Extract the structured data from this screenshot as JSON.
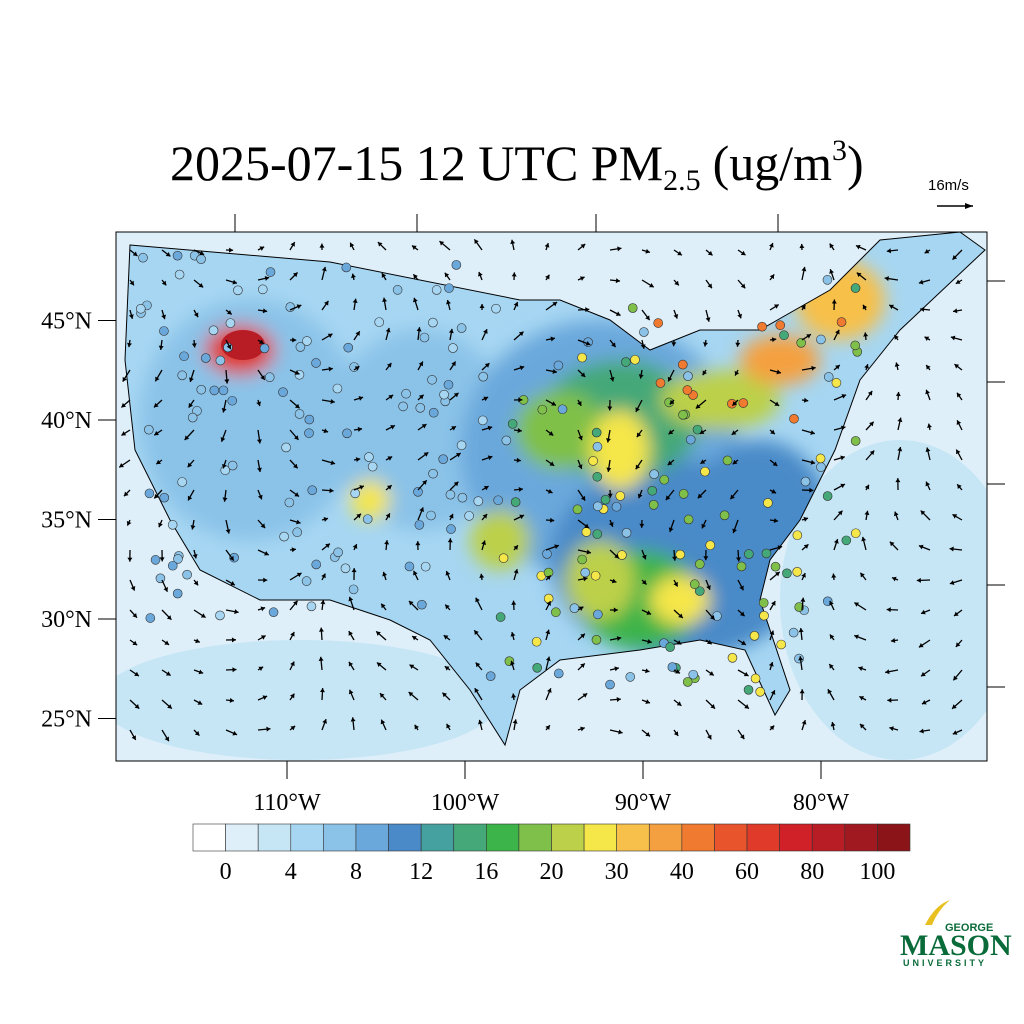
{
  "header": {
    "title": {
      "main": "2025-07-15 12 UTC PM",
      "sub": "2.5",
      "unit": "(ug/m",
      "sup": "3",
      "close": ")"
    },
    "reference_vector": "16m/s"
  },
  "map": {
    "lat_ticks": [
      {
        "value": 45,
        "label": "45°N"
      },
      {
        "value": 40,
        "label": "40°N"
      },
      {
        "value": 35,
        "label": "35°N"
      },
      {
        "value": 30,
        "label": "30°N"
      },
      {
        "value": 25,
        "label": "25°N"
      }
    ],
    "lon_ticks": [
      {
        "value": -110,
        "label": "110°W"
      },
      {
        "value": -100,
        "label": "100°W"
      },
      {
        "value": -90,
        "label": "90°W"
      },
      {
        "value": -80,
        "label": "80°W"
      }
    ]
  },
  "colorbar": {
    "colors": [
      "#ffffff",
      "#deeff9",
      "#c6e6f6",
      "#a6d6f2",
      "#8ac2e8",
      "#6aa8dc",
      "#4a8ac8",
      "#45a0a0",
      "#45a878",
      "#3cb44a",
      "#7fc04a",
      "#bcd04a",
      "#f5e64a",
      "#f7c04a",
      "#f5a040",
      "#f07a30",
      "#e8552d",
      "#e03a2a",
      "#d02028",
      "#b81c24",
      "#a01820",
      "#8a1418"
    ],
    "ticks": [
      0,
      4,
      8,
      12,
      16,
      20,
      30,
      40,
      60,
      80,
      100
    ]
  },
  "logo": {
    "top": "GEORGE",
    "main": "MASON",
    "bottom": "UNIVERSITY"
  }
}
